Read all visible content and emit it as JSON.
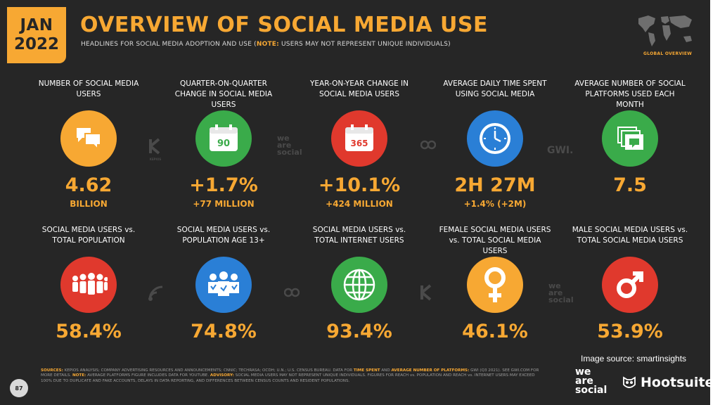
{
  "header": {
    "month": "JAN",
    "year": "2022",
    "title": "OVERVIEW OF SOCIAL MEDIA USE",
    "subtitle_pre": "HEADLINES FOR SOCIAL MEDIA ADOPTION AND USE (",
    "subtitle_note": "NOTE:",
    "subtitle_post": " USERS MAY NOT REPRESENT UNIQUE INDIVIDUALS)",
    "section_label": "GLOBAL OVERVIEW"
  },
  "colors": {
    "orange": "#f7a833",
    "green": "#3aab4a",
    "red": "#e0392d",
    "blue": "#2a7fd6",
    "background": "#262626"
  },
  "row1": [
    {
      "label": "NUMBER OF SOCIAL MEDIA USERS",
      "value": "4.62",
      "sub": "BILLION",
      "icon": "chat-bubbles-icon",
      "color": "#f7a833"
    },
    {
      "label": "QUARTER-ON-QUARTER CHANGE IN SOCIAL MEDIA USERS",
      "value": "+1.7%",
      "sub": "+77 MILLION",
      "icon": "calendar-90-icon",
      "icon_text": "90",
      "color": "#3aab4a"
    },
    {
      "label": "YEAR-ON-YEAR CHANGE IN SOCIAL MEDIA USERS",
      "value": "+10.1%",
      "sub": "+424 MILLION",
      "icon": "calendar-365-icon",
      "icon_text": "365",
      "color": "#e0392d"
    },
    {
      "label": "AVERAGE DAILY TIME SPENT USING SOCIAL MEDIA",
      "value": "2H 27M",
      "sub": "+1.4% (+2M)",
      "icon": "clock-icon",
      "color": "#2a7fd6"
    },
    {
      "label": "AVERAGE NUMBER OF SOCIAL PLATFORMS USED EACH MONTH",
      "value": "7.5",
      "sub": "",
      "icon": "stacked-windows-icon",
      "color": "#3aab4a"
    }
  ],
  "row2": [
    {
      "label": "SOCIAL MEDIA USERS vs. TOTAL POPULATION",
      "value": "58.4%",
      "icon": "crowd-icon",
      "color": "#e0392d"
    },
    {
      "label": "SOCIAL MEDIA USERS vs. POPULATION AGE 13+",
      "value": "74.8%",
      "icon": "people-group-icon",
      "color": "#2a7fd6"
    },
    {
      "label": "SOCIAL MEDIA USERS vs. TOTAL INTERNET USERS",
      "value": "93.4%",
      "icon": "globe-icon",
      "color": "#3aab4a"
    },
    {
      "label": "FEMALE SOCIAL MEDIA USERS vs. TOTAL SOCIAL MEDIA USERS",
      "value": "46.1%",
      "icon": "female-symbol-icon",
      "color": "#f7a833"
    },
    {
      "label": "MALE SOCIAL MEDIA USERS vs. TOTAL SOCIAL MEDIA USERS",
      "value": "53.9%",
      "icon": "male-symbol-icon",
      "color": "#e0392d"
    }
  ],
  "watermarks": {
    "kepios": "KEPIOS",
    "we_are_social": "we are social",
    "gwi": "GWI."
  },
  "footer": {
    "sources_label": "SOURCES:",
    "sources_text": "KEPIOS ANALYSIS; COMPANY ADVERTISING RESOURCES AND ANNOUNCEMENTS; CNNIC; TECHRASA; OCDH; U.N.; U.S. CENSUS BUREAU. DATA FOR",
    "time_spent": "TIME SPENT",
    "and_text": "AND",
    "avg_number": "AVERAGE NUMBER OF PLATFORMS:",
    "gwi_text": "GWI (Q3 2021). SEE GWI.COM FOR MORE DETAILS.",
    "note_label": "NOTE:",
    "note_text": "AVERAGE PLATFORMS FIGURE INCLUDES DATA FOR YOUTUBE.",
    "advisory_label": "ADVISORY:",
    "advisory_text": "SOCIAL MEDIA USERS MAY NOT REPRESENT UNIQUE INDIVIDUALS. FIGURES FOR REACH vs. POPULATION AND REACH vs. INTERNET USERS MAY EXCEED 100% DUE TO DUPLICATE AND FAKE ACCOUNTS, DELAYS IN DATA REPORTING, AND DIFFERENCES BETWEEN CENSUS COUNTS AND RESIDENT POPULATIONS.",
    "page_number": "87",
    "we_are_social_logo": "we are social",
    "hootsuite_logo": "Hootsuite",
    "image_source": "Image source: smartinsights"
  }
}
